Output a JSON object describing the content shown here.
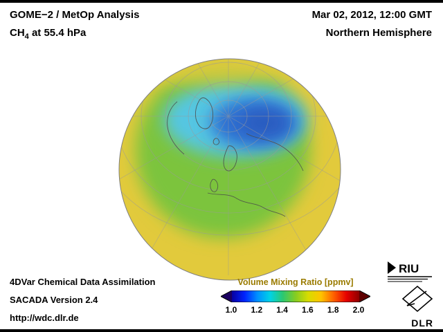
{
  "header": {
    "title": "GOME−2 / MetOp Analysis",
    "subtitle_prefix": "CH",
    "subtitle_sub": "4",
    "subtitle_suffix": " at 55.4 hPa",
    "datetime": "Mar 02, 2012, 12:00 GMT",
    "region": "Northern Hemisphere"
  },
  "footer": {
    "line1": "4DVar Chemical Data Assimilation",
    "line2": "SACADA Version 2.4",
    "url": "http://wdc.dlr.de"
  },
  "colorbar": {
    "title": "Volume Mixing Ratio [ppmv]",
    "ticks": [
      "1.0",
      "1.2",
      "1.4",
      "1.6",
      "1.8",
      "2.0"
    ],
    "gradient_colors": [
      "#0700a0",
      "#0023ff",
      "#0090ff",
      "#00d2e6",
      "#2cc870",
      "#85cc22",
      "#d8dc00",
      "#ffc400",
      "#ff6000",
      "#e60000",
      "#8e0000"
    ],
    "left_arrow_color": "#1b0060",
    "right_arrow_color": "#5e0000"
  },
  "logos": {
    "riu": "RIU",
    "dlr": "DLR"
  },
  "colors": {
    "map-yellow": "#e2ca3c",
    "map-green": "#7cc43e",
    "map-cyan": "#54c6e2",
    "map-blue": "#2f70d2",
    "map-deepblue": "#2a5cc0",
    "grid-gray": "#9a9a9a",
    "coast-gray": "#4a4a4a",
    "rim-gray": "#808080",
    "cb-title": "#9a7b00"
  },
  "chart_data": {
    "type": "heatmap",
    "title": "GOME−2 / MetOp Analysis, CH4 at 55.4 hPa",
    "datetime": "Mar 02, 2012, 12:00 GMT",
    "projection": "orthographic globe, Northern Hemisphere (pole near upper center, Europe lower center)",
    "colorbar_label": "Volume Mixing Ratio [ppmv]",
    "range_ppmv": [
      1.0,
      2.0
    ],
    "tick_values": [
      1.0,
      1.2,
      1.4,
      1.6,
      1.8,
      2.0
    ],
    "observed_pattern": [
      {
        "region": "low and mid latitudes / outer rim of globe",
        "value_ppmv": 1.6,
        "color": "yellow"
      },
      {
        "region": "mid-high latitudes (Europe, North America, Russia)",
        "value_ppmv": 1.45,
        "color": "green"
      },
      {
        "region": "sub-polar band around Arctic",
        "value_ppmv": 1.3,
        "color": "cyan"
      },
      {
        "region": "polar vortex core, Siberian side of pole",
        "value_ppmv": 1.15,
        "color": "blue"
      }
    ]
  }
}
